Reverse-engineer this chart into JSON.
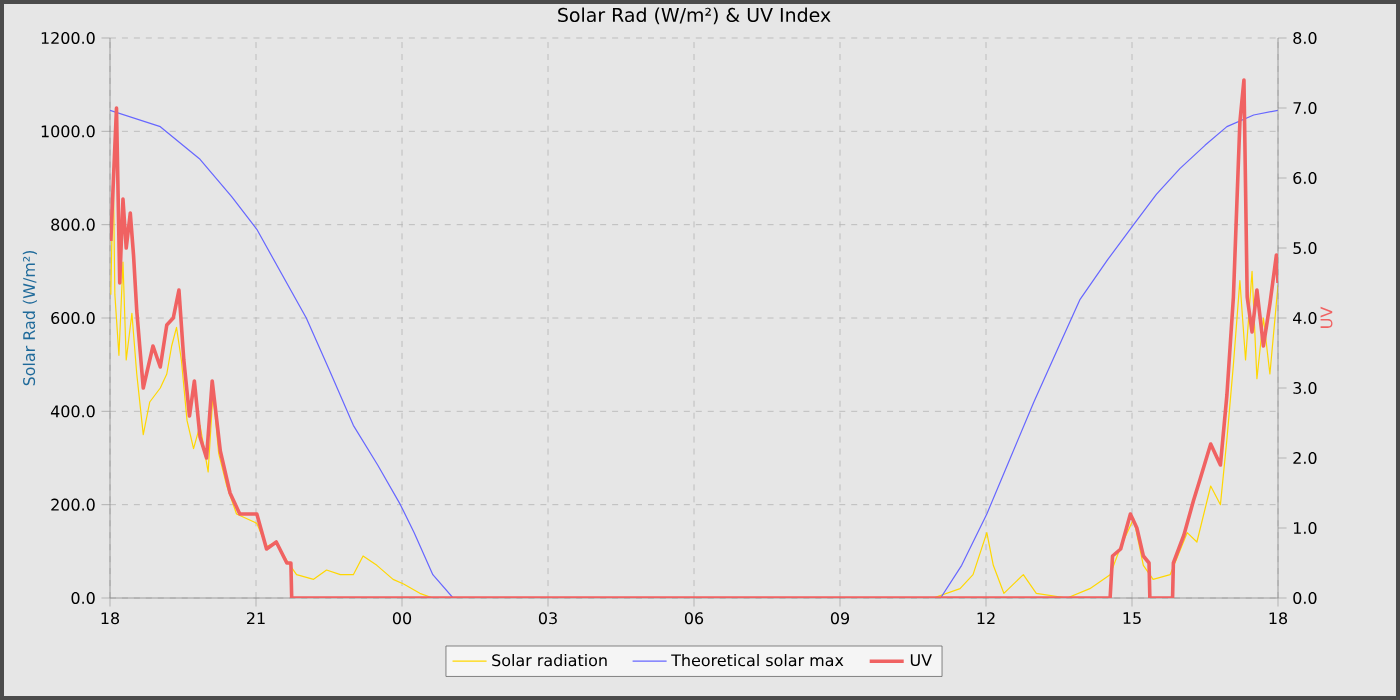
{
  "chart_data": {
    "type": "line",
    "title": "Solar Rad (W/m²) &  UV Index",
    "ylabel": "Solar Rad (W/m²)",
    "y2label": "UV",
    "xlim": [
      "2000-01-01T18:00",
      "2000-01-02T18:00"
    ],
    "xticks": [
      {
        "value": "2000-01-01T18:00",
        "label": "18"
      },
      {
        "value": "2000-01-01T21:00",
        "label": "21"
      },
      {
        "value": "2000-01-02T00:00",
        "label": "00"
      },
      {
        "value": "2000-01-02T03:00",
        "label": "03"
      },
      {
        "value": "2000-01-02T06:00",
        "label": "06"
      },
      {
        "value": "2000-01-02T09:00",
        "label": "09"
      },
      {
        "value": "2000-01-02T12:00",
        "label": "12"
      },
      {
        "value": "2000-01-02T15:00",
        "label": "15"
      },
      {
        "value": "2000-01-02T18:00",
        "label": "18"
      }
    ],
    "ylim": [
      0,
      1200
    ],
    "yticks": [
      {
        "value": 0,
        "label": "0.0"
      },
      {
        "value": 200,
        "label": "200.0"
      },
      {
        "value": 400,
        "label": "400.0"
      },
      {
        "value": 600,
        "label": "600.0"
      },
      {
        "value": 800,
        "label": "800.0"
      },
      {
        "value": 1000,
        "label": "1000.0"
      },
      {
        "value": 1200,
        "label": "1200.0"
      }
    ],
    "y2lim": [
      0,
      8
    ],
    "y2ticks": [
      {
        "value": 0,
        "label": "0.0"
      },
      {
        "value": 1,
        "label": "1.0"
      },
      {
        "value": 2,
        "label": "2.0"
      },
      {
        "value": 3,
        "label": "3.0"
      },
      {
        "value": 4,
        "label": "4.0"
      },
      {
        "value": 5,
        "label": "5.0"
      },
      {
        "value": 6,
        "label": "6.0"
      },
      {
        "value": 7,
        "label": "7.0"
      },
      {
        "value": 8,
        "label": "8.0"
      }
    ],
    "grid": true,
    "legend": "bottom",
    "marker": "none",
    "line_style": "solid",
    "series": [
      {
        "name": "Solar radiation",
        "color": "#ffd700",
        "x": [
          "2000-01-01T18:01",
          "2000-01-01T18:04",
          "2000-01-01T18:06",
          "2000-01-01T18:11",
          "2000-01-01T18:16",
          "2000-01-01T18:20",
          "2000-01-01T18:27",
          "2000-01-01T18:33",
          "2000-01-01T18:41",
          "2000-01-01T18:49",
          "2000-01-01T19:02",
          "2000-01-01T19:10",
          "2000-01-01T19:16",
          "2000-01-01T19:22",
          "2000-01-01T19:28",
          "2000-01-01T19:35",
          "2000-01-01T19:43",
          "2000-01-01T19:51",
          "2000-01-01T20:01",
          "2000-01-01T20:07",
          "2000-01-01T20:14",
          "2000-01-01T20:24",
          "2000-01-01T20:36",
          "2000-01-01T21:01",
          "2000-01-01T21:13",
          "2000-01-01T21:25",
          "2000-01-01T21:38",
          "2000-01-01T21:50",
          "2000-01-01T22:11",
          "2000-01-01T22:27",
          "2000-01-01T22:44",
          "2000-01-01T23:00",
          "2000-01-01T23:12",
          "2000-01-01T23:29",
          "2000-01-01T23:49",
          "2000-01-02T00:02",
          "2000-01-02T00:22",
          "2000-01-02T00:38",
          "2000-01-02T06:00",
          "2000-01-02T10:55",
          "2000-01-02T11:28",
          "2000-01-02T11:44",
          "2000-01-02T12:01",
          "2000-01-02T12:09",
          "2000-01-02T12:22",
          "2000-01-02T12:46",
          "2000-01-02T13:02",
          "2000-01-02T13:40",
          "2000-01-02T14:08",
          "2000-01-02T14:33",
          "2000-01-02T14:46",
          "2000-01-02T15:02",
          "2000-01-02T15:14",
          "2000-01-02T15:26",
          "2000-01-02T15:47",
          "2000-01-02T16:08",
          "2000-01-02T16:20",
          "2000-01-02T16:37",
          "2000-01-02T16:49",
          "2000-01-02T16:57",
          "2000-01-02T17:05",
          "2000-01-02T17:13",
          "2000-01-02T17:20",
          "2000-01-02T17:28",
          "2000-01-02T17:34",
          "2000-01-02T17:42",
          "2000-01-02T17:50",
          "2000-01-02T18:00"
        ],
        "values": [
          650,
          920,
          650,
          520,
          720,
          510,
          610,
          480,
          350,
          420,
          450,
          480,
          540,
          580,
          510,
          380,
          320,
          370,
          270,
          440,
          310,
          240,
          180,
          160,
          110,
          120,
          80,
          50,
          40,
          60,
          50,
          50,
          90,
          70,
          40,
          30,
          10,
          0,
          0,
          0,
          20,
          50,
          140,
          70,
          10,
          50,
          10,
          0,
          20,
          50,
          110,
          170,
          70,
          40,
          50,
          140,
          120,
          240,
          200,
          340,
          500,
          680,
          510,
          700,
          470,
          600,
          480,
          670
        ]
      },
      {
        "name": "Theoretical solar max",
        "color": "#6666ff",
        "x": [
          "2000-01-01T18:00",
          "2000-01-01T19:02",
          "2000-01-01T19:51",
          "2000-01-01T20:30",
          "2000-01-01T21:01",
          "2000-01-01T22:02",
          "2000-01-01T22:30",
          "2000-01-01T23:00",
          "2000-01-01T23:30",
          "2000-01-01T23:58",
          "2000-01-02T00:15",
          "2000-01-02T00:38",
          "2000-01-02T01:03",
          "2000-01-02T06:00",
          "2000-01-02T11:04",
          "2000-01-02T11:30",
          "2000-01-02T12:01",
          "2000-01-02T12:30",
          "2000-01-02T12:59",
          "2000-01-02T13:30",
          "2000-01-02T13:56",
          "2000-01-02T14:30",
          "2000-01-02T15:02",
          "2000-01-02T15:30",
          "2000-01-02T15:59",
          "2000-01-02T16:30",
          "2000-01-02T16:57",
          "2000-01-02T17:30",
          "2000-01-02T18:00"
        ],
        "values": [
          1045,
          1010,
          940,
          860,
          790,
          600,
          490,
          370,
          285,
          200,
          140,
          50,
          0,
          0,
          0,
          70,
          180,
          300,
          420,
          540,
          640,
          725,
          800,
          865,
          920,
          970,
          1010,
          1035,
          1045
        ]
      },
      {
        "name": "UV",
        "color": "#f06262",
        "axis": "y2",
        "x": [
          "2000-01-01T18:01",
          "2000-01-01T18:08",
          "2000-01-01T18:12",
          "2000-01-01T18:16",
          "2000-01-01T18:20",
          "2000-01-01T18:25",
          "2000-01-01T18:29",
          "2000-01-01T18:33",
          "2000-01-01T18:41",
          "2000-01-01T18:53",
          "2000-01-01T19:02",
          "2000-01-01T19:10",
          "2000-01-01T19:18",
          "2000-01-01T19:25",
          "2000-01-01T19:31",
          "2000-01-01T19:38",
          "2000-01-01T19:44",
          "2000-01-01T19:51",
          "2000-01-01T19:59",
          "2000-01-01T20:06",
          "2000-01-01T20:16",
          "2000-01-01T20:28",
          "2000-01-01T20:40",
          "2000-01-01T21:01",
          "2000-01-01T21:13",
          "2000-01-01T21:25",
          "2000-01-01T21:38",
          "2000-01-01T21:43",
          "2000-01-01T21:44",
          "2000-01-02T06:00",
          "2000-01-02T14:33",
          "2000-01-02T14:36",
          "2000-01-02T14:46",
          "2000-01-02T14:58",
          "2000-01-02T15:06",
          "2000-01-02T15:14",
          "2000-01-02T15:21",
          "2000-01-02T15:22",
          "2000-01-02T15:50",
          "2000-01-02T15:51",
          "2000-01-02T16:04",
          "2000-01-02T16:16",
          "2000-01-02T16:24",
          "2000-01-02T16:37",
          "2000-01-02T16:49",
          "2000-01-02T16:57",
          "2000-01-02T17:05",
          "2000-01-02T17:13",
          "2000-01-02T17:18",
          "2000-01-02T17:22",
          "2000-01-02T17:28",
          "2000-01-02T17:34",
          "2000-01-02T17:42",
          "2000-01-02T17:50",
          "2000-01-02T17:58",
          "2000-01-02T18:00"
        ],
        "values": [
          5.1,
          7.0,
          4.5,
          5.7,
          5.0,
          5.5,
          4.9,
          4.1,
          3.0,
          3.6,
          3.3,
          3.9,
          4.0,
          4.4,
          3.4,
          2.6,
          3.1,
          2.3,
          2.0,
          3.1,
          2.1,
          1.5,
          1.2,
          1.2,
          0.7,
          0.8,
          0.5,
          0.5,
          0,
          0,
          0,
          0.6,
          0.7,
          1.2,
          1.0,
          0.6,
          0.5,
          0,
          0,
          0.5,
          0.9,
          1.4,
          1.7,
          2.2,
          1.9,
          2.9,
          4.3,
          6.8,
          7.4,
          4.3,
          3.8,
          4.4,
          3.6,
          4.2,
          4.9,
          4.5
        ]
      }
    ]
  }
}
